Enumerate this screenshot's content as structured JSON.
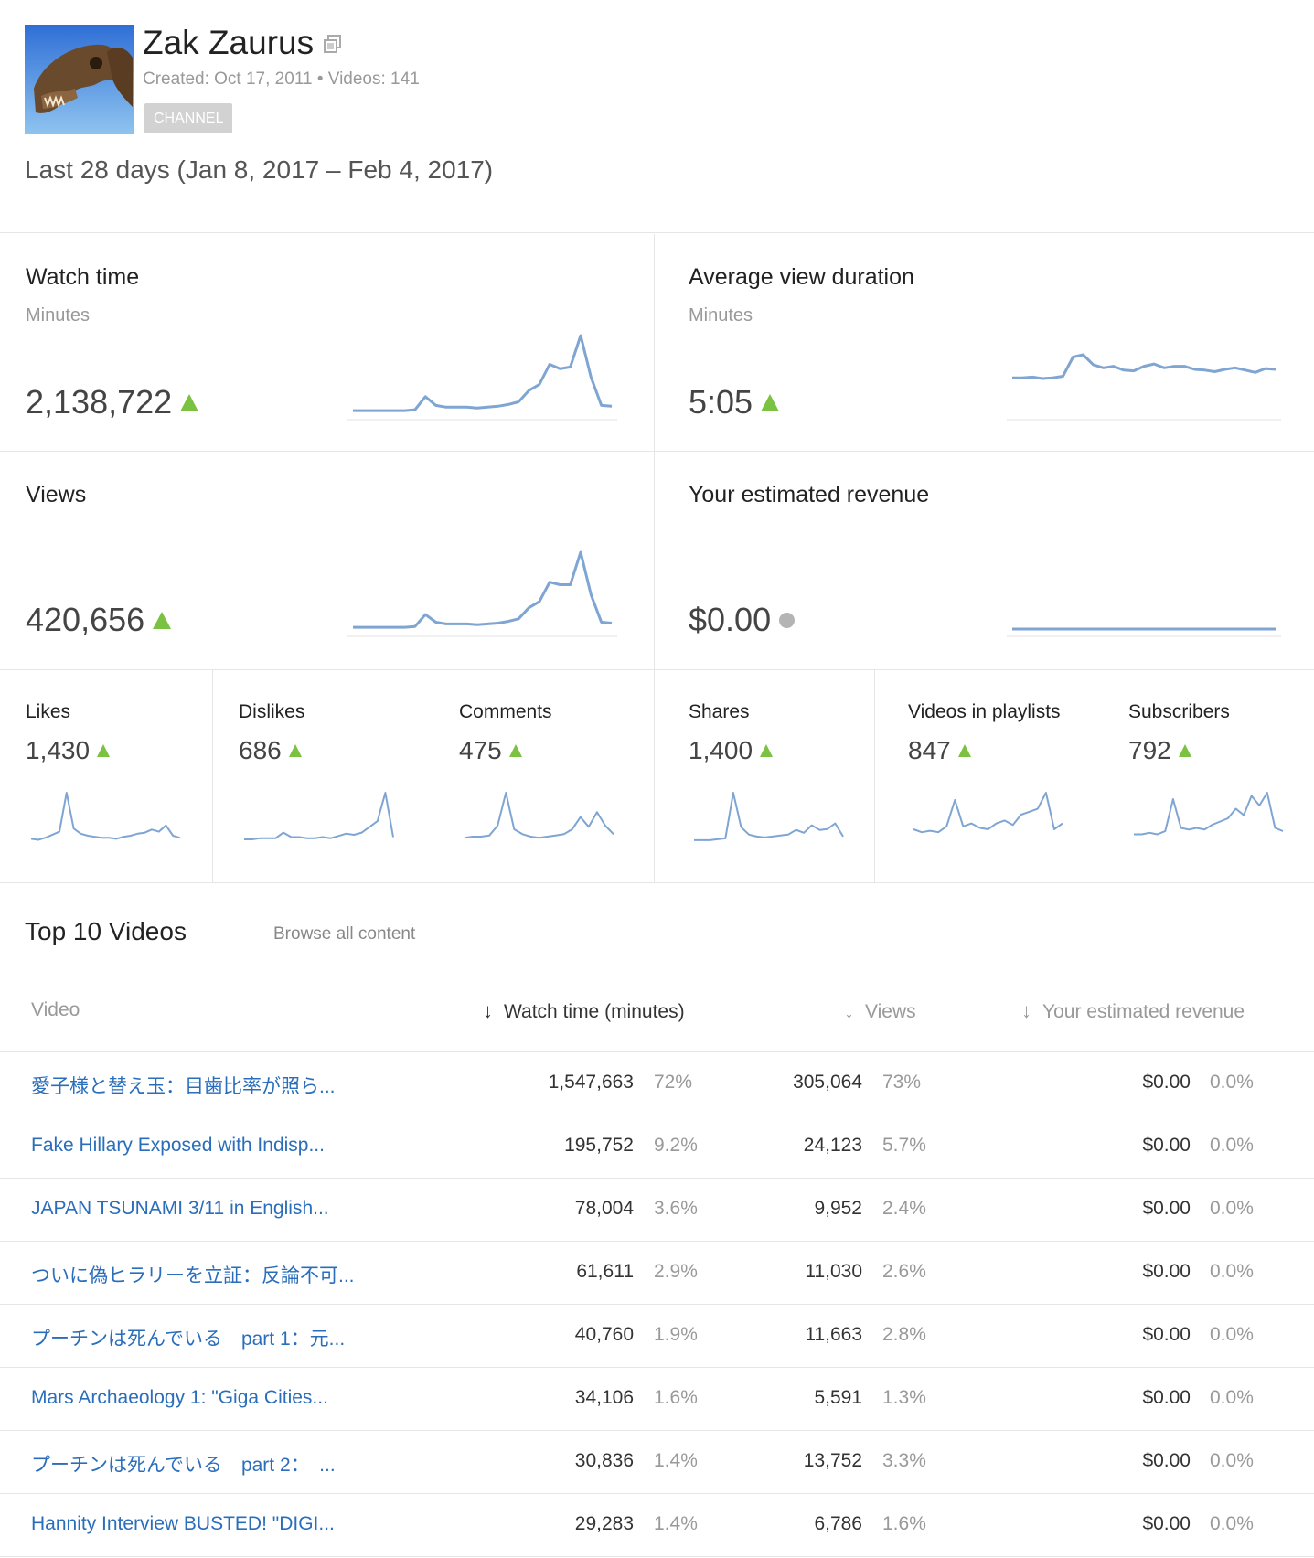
{
  "channel": {
    "name": "Zak Zaurus",
    "meta": "Created: Oct 17, 2011  •  Videos: 141",
    "badge": "CHANNEL"
  },
  "date_range": "Last 28 days (Jan 8, 2017 – Feb 4, 2017)",
  "colors": {
    "accent_green": "#7bc142",
    "spark_blue": "#7fa5d3",
    "link_blue": "#2a6ebb",
    "neutral_dot": "#b4b4b4"
  },
  "cards": {
    "watch_time": {
      "title": "Watch time",
      "sub": "Minutes",
      "value": "2,138,722",
      "trend": "up"
    },
    "avg_duration": {
      "title": "Average view duration",
      "sub": "Minutes",
      "value": "5:05",
      "trend": "up"
    },
    "views": {
      "title": "Views",
      "value": "420,656",
      "trend": "up"
    },
    "revenue": {
      "title": "Your estimated revenue",
      "value": "$0.00",
      "trend": "neutral"
    }
  },
  "small_metrics": [
    {
      "title": "Likes",
      "value": "1,430",
      "trend": "up"
    },
    {
      "title": "Dislikes",
      "value": "686",
      "trend": "up"
    },
    {
      "title": "Comments",
      "value": "475",
      "trend": "up"
    },
    {
      "title": "Shares",
      "value": "1,400",
      "trend": "up"
    },
    {
      "title": "Videos in playlists",
      "value": "847",
      "trend": "up"
    },
    {
      "title": "Subscribers",
      "value": "792",
      "trend": "up"
    }
  ],
  "sparklines": {
    "watch_time": [
      2,
      2,
      2,
      2,
      2,
      2,
      3,
      18,
      8,
      6,
      6,
      6,
      5,
      6,
      7,
      9,
      12,
      25,
      32,
      55,
      50,
      52,
      88,
      40,
      8,
      7
    ],
    "avg_duration": [
      45,
      45,
      46,
      44,
      45,
      47,
      72,
      75,
      62,
      58,
      60,
      55,
      54,
      60,
      63,
      58,
      60,
      60,
      56,
      55,
      53,
      56,
      58,
      55,
      52,
      57,
      56
    ],
    "views": [
      2,
      2,
      2,
      2,
      2,
      2,
      3,
      17,
      8,
      6,
      6,
      6,
      5,
      6,
      7,
      9,
      12,
      25,
      32,
      55,
      52,
      52,
      90,
      40,
      8,
      7
    ],
    "revenue": [
      0,
      0,
      0,
      0,
      0,
      0,
      0,
      0,
      0,
      0,
      0,
      0,
      0,
      0,
      0,
      0,
      0,
      0,
      0,
      0,
      0,
      0,
      0,
      0,
      0,
      0
    ],
    "likes": [
      5,
      4,
      6,
      9,
      12,
      50,
      15,
      10,
      8,
      7,
      6,
      6,
      5,
      7,
      8,
      10,
      11,
      14,
      12,
      18,
      8,
      6
    ],
    "dislikes": [
      4,
      4,
      5,
      5,
      5,
      10,
      6,
      6,
      5,
      5,
      6,
      5,
      7,
      9,
      8,
      10,
      15,
      20,
      45,
      6
    ],
    "comments": [
      5,
      6,
      6,
      7,
      15,
      42,
      12,
      8,
      6,
      5,
      6,
      7,
      8,
      12,
      22,
      14,
      26,
      15,
      8
    ],
    "shares": [
      4,
      4,
      4,
      5,
      6,
      55,
      18,
      10,
      8,
      7,
      8,
      9,
      10,
      15,
      12,
      20,
      15,
      16,
      22,
      8
    ],
    "playlists": [
      10,
      8,
      9,
      8,
      12,
      30,
      12,
      14,
      11,
      10,
      14,
      16,
      13,
      20,
      22,
      24,
      35,
      10,
      14
    ],
    "subscribers": [
      6,
      6,
      7,
      6,
      8,
      28,
      10,
      9,
      10,
      9,
      12,
      14,
      16,
      22,
      18,
      30,
      24,
      32,
      10,
      8
    ]
  },
  "top_videos": {
    "title": "Top 10 Videos",
    "browse_label": "Browse all content",
    "columns": {
      "video": "Video",
      "watch_time": "Watch time (minutes)",
      "views": "Views",
      "revenue": "Your estimated revenue"
    },
    "rows": [
      {
        "title": "愛子様と替え玉：目歯比率が照ら...",
        "wt": "1,547,663",
        "wtp": "72%",
        "views": "305,064",
        "vp": "73%",
        "rev": "$0.00",
        "rp": "0.0%"
      },
      {
        "title": "Fake Hillary Exposed with Indisp...",
        "wt": "195,752",
        "wtp": "9.2%",
        "views": "24,123",
        "vp": "5.7%",
        "rev": "$0.00",
        "rp": "0.0%"
      },
      {
        "title": "JAPAN TSUNAMI 3/11 in English...",
        "wt": "78,004",
        "wtp": "3.6%",
        "views": "9,952",
        "vp": "2.4%",
        "rev": "$0.00",
        "rp": "0.0%"
      },
      {
        "title": "ついに偽ヒラリーを立証：反論不可...",
        "wt": "61,611",
        "wtp": "2.9%",
        "views": "11,030",
        "vp": "2.6%",
        "rev": "$0.00",
        "rp": "0.0%"
      },
      {
        "title": "プーチンは死んでいる　part 1：元...",
        "wt": "40,760",
        "wtp": "1.9%",
        "views": "11,663",
        "vp": "2.8%",
        "rev": "$0.00",
        "rp": "0.0%"
      },
      {
        "title": "Mars Archaeology 1: \"Giga Cities...",
        "wt": "34,106",
        "wtp": "1.6%",
        "views": "5,591",
        "vp": "1.3%",
        "rev": "$0.00",
        "rp": "0.0%"
      },
      {
        "title": "プーチンは死んでいる　part 2：　...",
        "wt": "30,836",
        "wtp": "1.4%",
        "views": "13,752",
        "vp": "3.3%",
        "rev": "$0.00",
        "rp": "0.0%"
      },
      {
        "title": "Hannity Interview BUSTED! \"DIGI...",
        "wt": "29,283",
        "wtp": "1.4%",
        "views": "6,786",
        "vp": "1.6%",
        "rev": "$0.00",
        "rp": "0.0%"
      }
    ]
  }
}
